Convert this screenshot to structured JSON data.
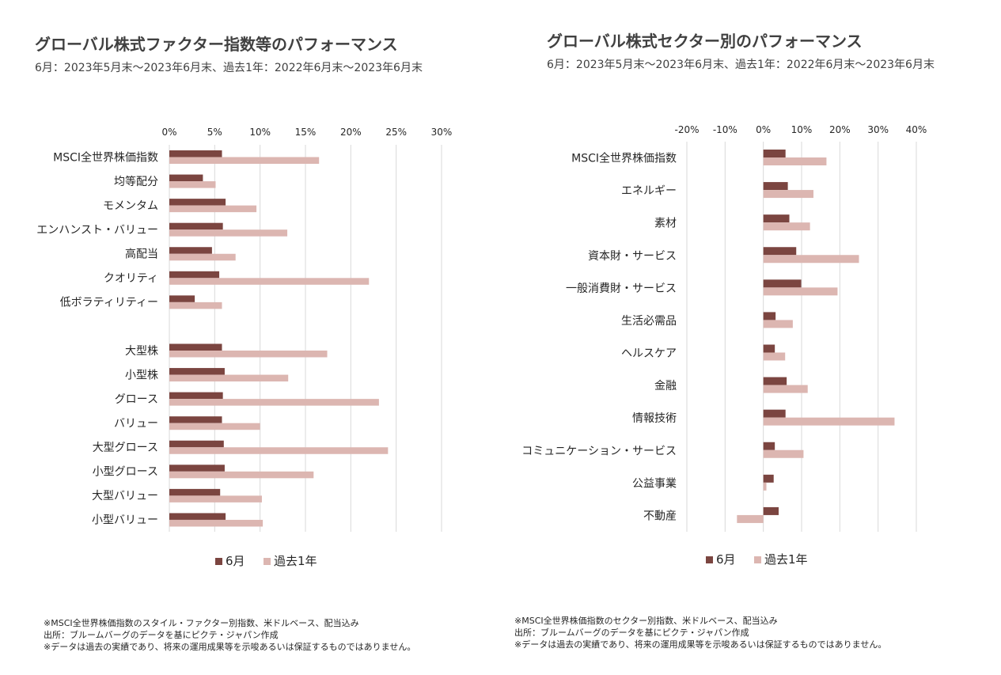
{
  "colors": {
    "month": "#7b4540",
    "year": "#dcb6b1",
    "grid": "#d9d9d9",
    "text": "#262626"
  },
  "left": {
    "title": "グローバル株式ファクター指数等のパフォーマンス",
    "subtitle": "6月：2023年5月末～2023年6月末、過去1年：2022年6月末～2023年6月末",
    "notes": [
      "※MSCI全世界株価指数のスタイル・ファクター別指数、米ドルベース、配当込み",
      "出所：ブルームバーグのデータを基にピクテ・ジャパン作成",
      "※データは過去の実績であり、将来の運用成果等を示唆あるいは保証するものではありません。"
    ]
  },
  "right": {
    "title": "グローバル株式セクター別のパフォーマンス",
    "subtitle": "6月：2023年5月末～2023年6月末、過去1年：2022年6月末～2023年6月末",
    "notes": [
      "※MSCI全世界株価指数のセクター別指数、米ドルベース、配当込み",
      "出所：ブルームバーグのデータを基にピクテ・ジャパン作成",
      "※データは過去の実績であり、将来の運用成果等を示唆あるいは保証するものではありません。"
    ]
  },
  "chart_data": [
    {
      "type": "bar",
      "orientation": "horizontal",
      "title": "グローバル株式ファクター指数等のパフォーマンス",
      "categories": [
        "MSCI全世界株価指数",
        "均等配分",
        "モメンタム",
        "エンハンスト・バリュー",
        "高配当",
        "クオリティ",
        "低ボラティリティー",
        "",
        "大型株",
        "小型株",
        "グロース",
        "バリュー",
        "大型グロース",
        "小型グロース",
        "大型バリュー",
        "小型バリュー"
      ],
      "series": [
        {
          "name": "6月",
          "values": [
            5.8,
            3.7,
            6.2,
            5.9,
            4.7,
            5.5,
            2.8,
            null,
            5.8,
            6.1,
            5.9,
            5.8,
            6.0,
            6.1,
            5.6,
            6.2
          ]
        },
        {
          "name": "過去1年",
          "values": [
            16.5,
            5.1,
            9.6,
            13.0,
            7.3,
            22.0,
            5.8,
            null,
            17.4,
            13.1,
            23.1,
            10.0,
            24.1,
            15.9,
            10.2,
            10.3
          ]
        }
      ],
      "xticks": [
        "0%",
        "5%",
        "10%",
        "15%",
        "20%",
        "25%",
        "30%"
      ],
      "xlim": [
        0,
        30
      ],
      "legend": "bottom",
      "grid": true
    },
    {
      "type": "bar",
      "orientation": "horizontal",
      "title": "グローバル株式セクター別のパフォーマンス",
      "categories": [
        "MSCI全世界株価指数",
        "エネルギー",
        "素材",
        "資本財・サービス",
        "一般消費財・サービス",
        "生活必需品",
        "ヘルスケア",
        "金融",
        "情報技術",
        "コミュニケーション・サービス",
        "公益事業",
        "不動産"
      ],
      "series": [
        {
          "name": "6月",
          "values": [
            5.8,
            6.4,
            6.8,
            8.6,
            9.9,
            3.2,
            3.0,
            6.1,
            5.8,
            3.0,
            2.7,
            4.0
          ]
        },
        {
          "name": "過去1年",
          "values": [
            16.5,
            13.1,
            12.2,
            25.0,
            19.4,
            7.7,
            5.7,
            11.6,
            34.3,
            10.5,
            0.8,
            -6.9
          ]
        }
      ],
      "xticks": [
        "-20%",
        "-10%",
        "0%",
        "10%",
        "20%",
        "30%",
        "40%"
      ],
      "xlim": [
        -20,
        40
      ],
      "legend": "bottom",
      "grid": true
    }
  ]
}
